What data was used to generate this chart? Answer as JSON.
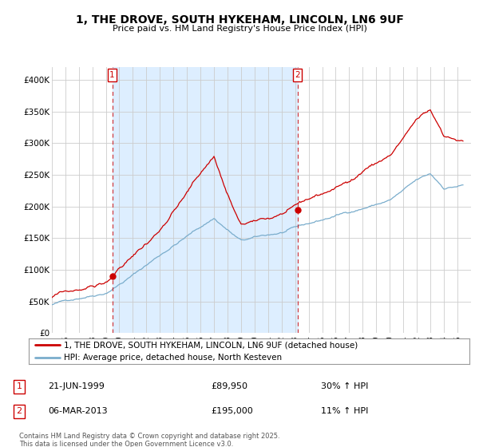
{
  "title_line1": "1, THE DROVE, SOUTH HYKEHAM, LINCOLN, LN6 9UF",
  "title_line2": "Price paid vs. HM Land Registry's House Price Index (HPI)",
  "ylim": [
    0,
    420000
  ],
  "yticks": [
    0,
    50000,
    100000,
    150000,
    200000,
    250000,
    300000,
    350000,
    400000
  ],
  "ytick_labels": [
    "£0",
    "£50K",
    "£100K",
    "£150K",
    "£200K",
    "£250K",
    "£300K",
    "£350K",
    "£400K"
  ],
  "line1_color": "#cc0000",
  "line2_color": "#7aadcc",
  "shade_color": "#ddeeff",
  "purchase1_date_year": 1999.47,
  "purchase1_price": 89950,
  "purchase2_date_year": 2013.17,
  "purchase2_price": 195000,
  "purchase1_hpi_pct": "30%",
  "purchase1_date_str": "21-JUN-1999",
  "purchase2_hpi_pct": "11%",
  "purchase2_date_str": "06-MAR-2013",
  "legend_line1": "1, THE DROVE, SOUTH HYKEHAM, LINCOLN, LN6 9UF (detached house)",
  "legend_line2": "HPI: Average price, detached house, North Kesteven",
  "footer": "Contains HM Land Registry data © Crown copyright and database right 2025.\nThis data is licensed under the Open Government Licence v3.0.",
  "background_color": "#ffffff",
  "grid_color": "#cccccc",
  "xstart": 1995,
  "xend": 2026
}
